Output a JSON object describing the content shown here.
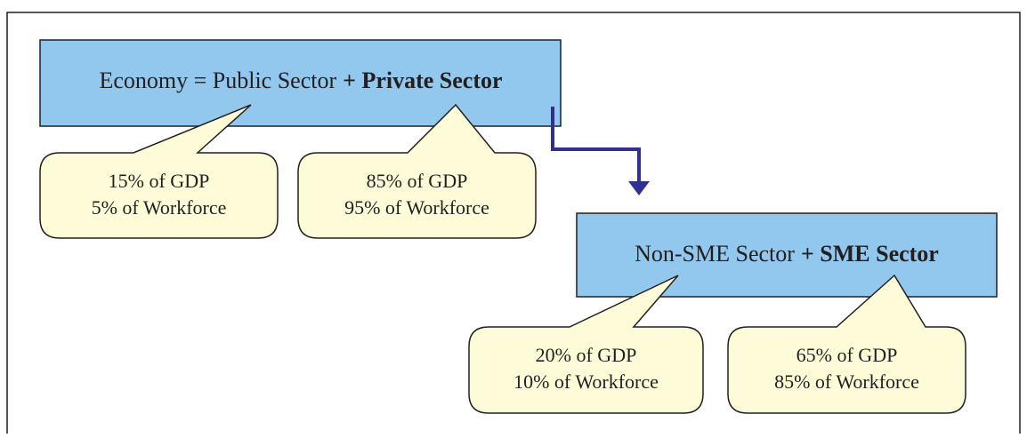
{
  "boxes": [
    {
      "plain": "Economy = Public Sector",
      "bold": "+ Private Sector"
    },
    {
      "plain": "Non-SME Sector",
      "bold": "+ SME Sector"
    }
  ],
  "callouts": [
    {
      "lines": [
        "15% of GDP",
        "5% of Workforce"
      ]
    },
    {
      "lines": [
        "85% of GDP",
        "95% of Workforce"
      ]
    },
    {
      "lines": [
        "20% of GDP",
        "10% of Workforce"
      ]
    },
    {
      "lines": [
        "65% of GDP",
        "85% of Workforce"
      ]
    }
  ]
}
